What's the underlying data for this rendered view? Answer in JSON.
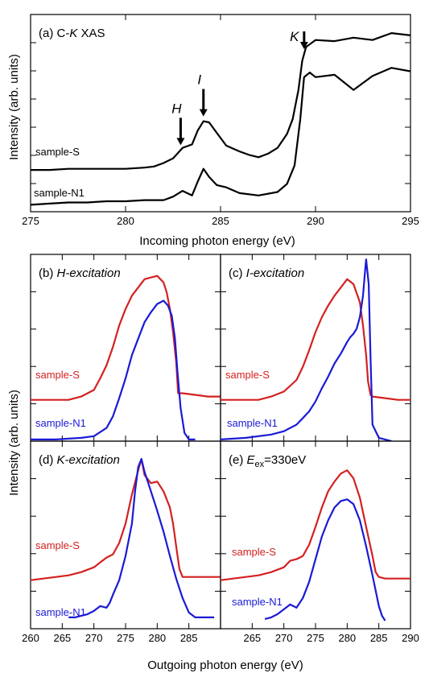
{
  "figure": {
    "ylabel_top": "Intensity (arb. units)",
    "ylabel_bottom": "Intensity (arb. units)",
    "xlabel_top": "Incoming photon energy (eV)",
    "xlabel_bottom": "Outgoing photon energy (eV)"
  },
  "colors": {
    "sample_S_xas": "#000000",
    "sample_N1_xas": "#000000",
    "sample_S": "#d42020",
    "sample_N1": "#1a1ad6"
  },
  "chart_data": [
    {
      "id": "a",
      "type": "line",
      "title_prefix": "(a)  C-",
      "title_italic": "K",
      "title_suffix": " XAS",
      "xlim": [
        275,
        295
      ],
      "xticks": [
        275,
        280,
        285,
        290,
        295
      ],
      "arrows": [
        {
          "label": "H",
          "x": 282.9
        },
        {
          "label": "I",
          "x": 284.1
        },
        {
          "label": "K",
          "x": 289.4
        }
      ],
      "series": [
        {
          "name": "sample-S",
          "color": "#000000",
          "x": [
            275,
            276,
            277,
            278,
            279,
            280,
            281,
            281.5,
            282,
            282.5,
            283,
            283.5,
            283.8,
            284.1,
            284.4,
            284.8,
            285.3,
            286,
            286.5,
            287,
            287.5,
            288,
            288.5,
            288.8,
            289.1,
            289.3,
            289.5,
            290,
            291,
            292,
            293,
            294,
            295
          ],
          "y": [
            0.36,
            0.36,
            0.37,
            0.37,
            0.37,
            0.37,
            0.38,
            0.39,
            0.42,
            0.46,
            0.55,
            0.58,
            0.7,
            0.78,
            0.77,
            0.68,
            0.57,
            0.52,
            0.49,
            0.47,
            0.5,
            0.55,
            0.67,
            0.8,
            1.05,
            1.3,
            1.42,
            1.48,
            1.47,
            1.5,
            1.48,
            1.54,
            1.52
          ]
        },
        {
          "name": "sample-N1",
          "color": "#000000",
          "x": [
            275,
            276,
            277,
            278,
            279,
            280,
            281,
            282,
            282.5,
            283,
            283.5,
            283.8,
            284.1,
            284.4,
            284.8,
            285.3,
            286,
            287,
            288,
            288.5,
            288.9,
            289.2,
            289.4,
            289.7,
            290,
            291,
            292,
            293,
            294,
            295
          ],
          "y": [
            0.06,
            0.07,
            0.08,
            0.08,
            0.09,
            0.09,
            0.1,
            0.1,
            0.13,
            0.18,
            0.14,
            0.26,
            0.37,
            0.3,
            0.23,
            0.21,
            0.16,
            0.14,
            0.17,
            0.24,
            0.4,
            0.8,
            1.16,
            1.2,
            1.16,
            1.18,
            1.05,
            1.17,
            1.24,
            1.21
          ]
        }
      ]
    },
    {
      "id": "b",
      "type": "line",
      "title_prefix": "(b) ",
      "title_italic": "H-excitation",
      "title_suffix": "",
      "xlim": [
        260,
        290
      ],
      "xticks": [
        260,
        265,
        270,
        275,
        280,
        285
      ],
      "series": [
        {
          "name": "sample-S",
          "color": "#d42020",
          "x": [
            260,
            262,
            264,
            266,
            268,
            270,
            271,
            272,
            273,
            274,
            275,
            276,
            277,
            278,
            279,
            280,
            281,
            281.5,
            282,
            282.5,
            283,
            283.3,
            284,
            286,
            288,
            290
          ],
          "y": [
            0.25,
            0.25,
            0.25,
            0.25,
            0.27,
            0.31,
            0.38,
            0.46,
            0.57,
            0.7,
            0.8,
            0.88,
            0.93,
            0.98,
            0.99,
            1.0,
            0.96,
            0.9,
            0.8,
            0.66,
            0.48,
            0.29,
            0.29,
            0.28,
            0.27,
            0.27
          ]
        },
        {
          "name": "sample-N1",
          "color": "#1a1ad6",
          "x": [
            260,
            264,
            268,
            270,
            272,
            273,
            274,
            275,
            276,
            277,
            278,
            279,
            280,
            281,
            281.7,
            282.3,
            282.8,
            283.2,
            283.7,
            284.3,
            285,
            286
          ],
          "y": [
            0.01,
            0.01,
            0.02,
            0.03,
            0.08,
            0.15,
            0.26,
            0.38,
            0.52,
            0.62,
            0.72,
            0.78,
            0.83,
            0.85,
            0.82,
            0.76,
            0.62,
            0.42,
            0.2,
            0.05,
            0.01,
            0.01
          ]
        }
      ]
    },
    {
      "id": "c",
      "type": "line",
      "title_prefix": "(c) ",
      "title_italic": "I-excitation",
      "title_suffix": "",
      "xlim": [
        260,
        290
      ],
      "xticks": [
        265,
        270,
        275,
        280,
        285,
        290
      ],
      "series": [
        {
          "name": "sample-S",
          "color": "#d42020",
          "x": [
            260,
            262,
            264,
            266,
            268,
            270,
            272,
            273,
            274,
            275,
            276,
            277,
            278,
            279,
            280,
            281,
            282,
            282.5,
            283,
            283.3,
            283.7,
            284,
            286,
            288,
            290
          ],
          "y": [
            0.25,
            0.25,
            0.25,
            0.25,
            0.27,
            0.3,
            0.37,
            0.45,
            0.55,
            0.66,
            0.75,
            0.82,
            0.88,
            0.93,
            0.98,
            0.95,
            0.84,
            0.7,
            0.52,
            0.36,
            0.28,
            0.27,
            0.26,
            0.25,
            0.25
          ]
        },
        {
          "name": "sample-N1",
          "color": "#1a1ad6",
          "x": [
            260,
            264,
            268,
            270,
            272,
            273,
            274,
            275,
            276,
            277,
            278,
            279,
            280,
            280.5,
            281,
            281.5,
            282,
            282.5,
            282.8,
            283,
            283.4,
            283.7,
            284,
            285,
            286,
            287
          ],
          "y": [
            0.01,
            0.02,
            0.04,
            0.06,
            0.1,
            0.14,
            0.18,
            0.24,
            0.32,
            0.39,
            0.47,
            0.53,
            0.6,
            0.63,
            0.65,
            0.68,
            0.75,
            0.88,
            1.02,
            1.1,
            0.95,
            0.5,
            0.1,
            0.02,
            0.01,
            0.0
          ]
        }
      ]
    },
    {
      "id": "d",
      "type": "line",
      "title_prefix": "(d) ",
      "title_italic": "K-excitation",
      "title_suffix": "",
      "xlim": [
        260,
        290
      ],
      "xticks": [
        260,
        265,
        270,
        275,
        280,
        285
      ],
      "series": [
        {
          "name": "sample-S",
          "color": "#d42020",
          "x": [
            260,
            262,
            264,
            266,
            268,
            270,
            271,
            272,
            273,
            274,
            275,
            276,
            277,
            277.5,
            278,
            279,
            280,
            281,
            282,
            282.5,
            283,
            283.5,
            284,
            286,
            288,
            290
          ],
          "y": [
            0.25,
            0.26,
            0.27,
            0.28,
            0.3,
            0.33,
            0.36,
            0.39,
            0.41,
            0.48,
            0.6,
            0.78,
            0.93,
            1.0,
            0.9,
            0.85,
            0.86,
            0.8,
            0.7,
            0.6,
            0.46,
            0.32,
            0.27,
            0.27,
            0.27,
            0.27
          ]
        },
        {
          "name": "sample-N1",
          "color": "#1a1ad6",
          "x": [
            266,
            267,
            268,
            269,
            270,
            271,
            272,
            272.5,
            273,
            274,
            275,
            276,
            276.5,
            277,
            277.5,
            278,
            279,
            280,
            281,
            282,
            283,
            284,
            285,
            286,
            288,
            289
          ],
          "y": [
            0.02,
            0.02,
            0.03,
            0.04,
            0.06,
            0.09,
            0.08,
            0.11,
            0.16,
            0.25,
            0.4,
            0.6,
            0.8,
            0.95,
            1.0,
            0.92,
            0.8,
            0.68,
            0.55,
            0.4,
            0.26,
            0.14,
            0.05,
            0.02,
            0.02,
            0.02
          ]
        }
      ]
    },
    {
      "id": "e",
      "type": "line",
      "title_prefix": "(e) ",
      "title_italic": "E",
      "title_sub": "ex",
      "title_suffix": "=330eV",
      "xlim": [
        260,
        290
      ],
      "xticks": [
        265,
        270,
        275,
        280,
        285,
        290
      ],
      "series": [
        {
          "name": "sample-S",
          "color": "#d42020",
          "x": [
            260,
            262,
            264,
            266,
            268,
            270,
            271,
            272,
            273,
            274,
            275,
            276,
            277,
            278,
            279,
            280,
            281,
            282,
            283,
            284,
            284.5,
            285,
            286,
            288,
            290
          ],
          "y": [
            0.25,
            0.26,
            0.27,
            0.28,
            0.3,
            0.33,
            0.37,
            0.38,
            0.4,
            0.47,
            0.58,
            0.7,
            0.8,
            0.86,
            0.91,
            0.93,
            0.88,
            0.76,
            0.58,
            0.4,
            0.3,
            0.27,
            0.26,
            0.26,
            0.26
          ]
        },
        {
          "name": "sample-N1",
          "color": "#1a1ad6",
          "x": [
            267,
            268,
            269,
            270,
            271,
            272,
            273,
            274,
            275,
            276,
            277,
            278,
            279,
            280,
            281,
            282,
            283,
            284,
            285,
            285.5,
            286
          ],
          "y": [
            0.01,
            0.02,
            0.04,
            0.07,
            0.1,
            0.08,
            0.14,
            0.24,
            0.38,
            0.52,
            0.62,
            0.7,
            0.74,
            0.75,
            0.72,
            0.62,
            0.46,
            0.28,
            0.09,
            0.03,
            0.0
          ]
        }
      ]
    }
  ]
}
